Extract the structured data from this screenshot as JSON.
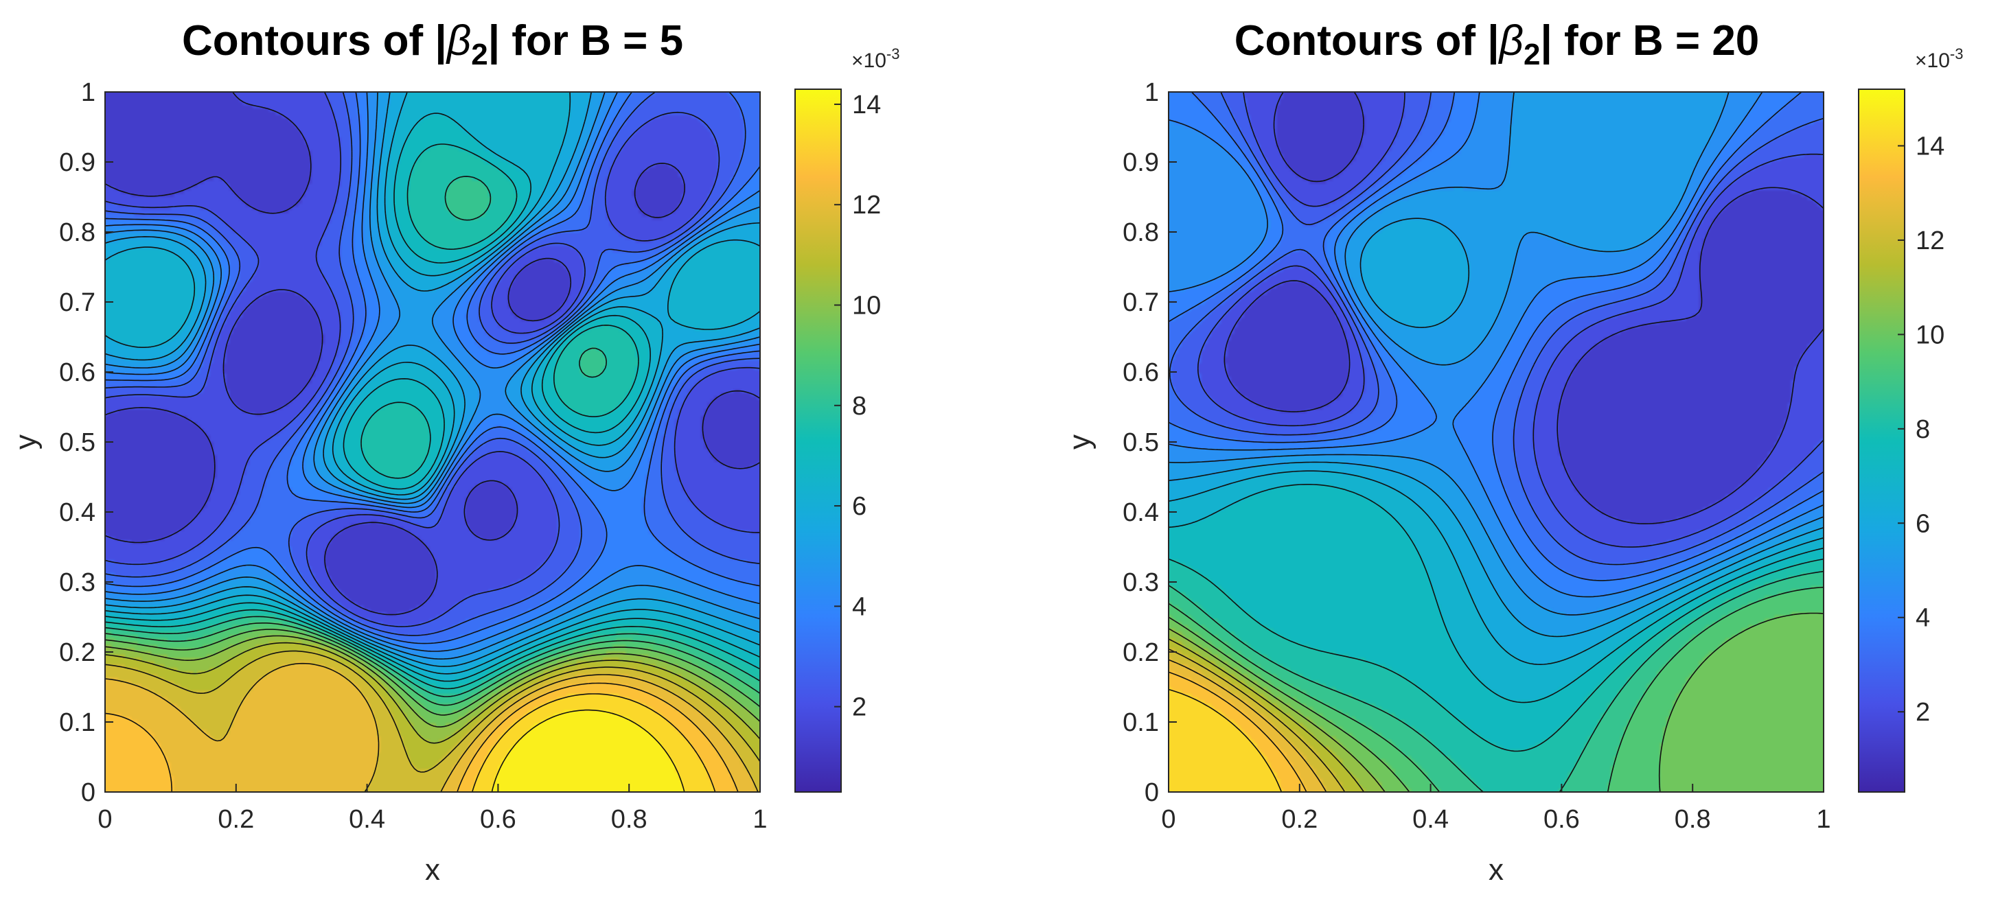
{
  "chart_data": [
    {
      "type": "heatmap",
      "subtype": "filled-contour",
      "title": {
        "prefix": "Contours of |",
        "symbol": "β",
        "subscript": "2",
        "suffix": "| for B = 5"
      },
      "xlabel": "x",
      "ylabel": "y",
      "xlim": [
        0,
        1
      ],
      "ylim": [
        0,
        1
      ],
      "x_ticks": [
        "0",
        "0.2",
        "0.4",
        "0.6",
        "0.8",
        "1"
      ],
      "y_ticks": [
        "0",
        "0.1",
        "0.2",
        "0.3",
        "0.4",
        "0.5",
        "0.6",
        "0.7",
        "0.8",
        "0.9",
        "1"
      ],
      "colorbar": {
        "colormap": "parula",
        "range": [
          0.3,
          14.3
        ],
        "ticks": [
          "2",
          "4",
          "6",
          "8",
          "10",
          "12",
          "14"
        ],
        "tick_values": [
          2,
          4,
          6,
          8,
          10,
          12,
          14
        ],
        "exponent_label": "×10",
        "exponent_power": "-3"
      },
      "features": [
        {
          "x": 0.72,
          "y": 0.0,
          "value": 14.2,
          "kind": "max"
        },
        {
          "x": 0.32,
          "y": 0.11,
          "value": 12.2,
          "kind": "max"
        },
        {
          "x": 0.0,
          "y": 0.02,
          "value": 12.5,
          "kind": "max"
        },
        {
          "x": 0.45,
          "y": 0.49,
          "value": 7.6,
          "kind": "max"
        },
        {
          "x": 0.56,
          "y": 0.85,
          "value": 8.0,
          "kind": "max"
        },
        {
          "x": 0.74,
          "y": 0.62,
          "value": 8.0,
          "kind": "max"
        },
        {
          "x": 0.07,
          "y": 0.71,
          "value": 6.5,
          "kind": "max"
        },
        {
          "x": 0.93,
          "y": 0.73,
          "value": 6.5,
          "kind": "max"
        },
        {
          "x": 0.62,
          "y": 0.955,
          "value": 6.3,
          "kind": "max"
        },
        {
          "x": 0.42,
          "y": 0.33,
          "value": 1.0,
          "kind": "min"
        },
        {
          "x": 0.06,
          "y": 0.47,
          "value": 1.2,
          "kind": "min"
        },
        {
          "x": 0.25,
          "y": 0.63,
          "value": 1.2,
          "kind": "min"
        },
        {
          "x": 0.58,
          "y": 0.41,
          "value": 1.5,
          "kind": "min"
        },
        {
          "x": 0.67,
          "y": 0.71,
          "value": 1.2,
          "kind": "min"
        },
        {
          "x": 0.96,
          "y": 0.53,
          "value": 1.5,
          "kind": "min"
        },
        {
          "x": 0.25,
          "y": 0.89,
          "value": 1.5,
          "kind": "min"
        },
        {
          "x": 0.07,
          "y": 0.92,
          "value": 1.2,
          "kind": "min"
        },
        {
          "x": 0.85,
          "y": 0.85,
          "value": 1.5,
          "kind": "min"
        }
      ]
    },
    {
      "type": "heatmap",
      "subtype": "filled-contour",
      "title": {
        "prefix": "Contours of |",
        "symbol": "β",
        "subscript": "2",
        "suffix": "| for B = 20"
      },
      "xlabel": "x",
      "ylabel": "y",
      "xlim": [
        0,
        1
      ],
      "ylim": [
        0,
        1
      ],
      "x_ticks": [
        "0",
        "0.2",
        "0.4",
        "0.6",
        "0.8",
        "1"
      ],
      "y_ticks": [
        "0",
        "0.1",
        "0.2",
        "0.3",
        "0.4",
        "0.5",
        "0.6",
        "0.7",
        "0.8",
        "0.9",
        "1"
      ],
      "colorbar": {
        "colormap": "parula",
        "range": [
          0.3,
          15.2
        ],
        "ticks": [
          "2",
          "4",
          "6",
          "8",
          "10",
          "12",
          "14"
        ],
        "tick_values": [
          2,
          4,
          6,
          8,
          10,
          12,
          14
        ],
        "exponent_label": "×10",
        "exponent_power": "-3"
      },
      "features": [
        {
          "x": 0.0,
          "y": 0.0,
          "value": 14.5,
          "kind": "max"
        },
        {
          "x": 0.95,
          "y": 0.1,
          "value": 10.2,
          "kind": "max"
        },
        {
          "x": 0.21,
          "y": 0.33,
          "value": 7.6,
          "kind": "max"
        },
        {
          "x": 0.35,
          "y": 0.74,
          "value": 6.0,
          "kind": "max"
        },
        {
          "x": 0.72,
          "y": 0.955,
          "value": 5.6,
          "kind": "max"
        },
        {
          "x": 0.72,
          "y": 0.87,
          "value": 5.5,
          "kind": "max"
        },
        {
          "x": 0.07,
          "y": 0.83,
          "value": 5.0,
          "kind": "max"
        },
        {
          "x": 0.75,
          "y": 0.55,
          "value": 1.0,
          "kind": "min"
        },
        {
          "x": 0.2,
          "y": 0.65,
          "value": 1.0,
          "kind": "min"
        },
        {
          "x": 0.88,
          "y": 0.78,
          "value": 1.3,
          "kind": "min"
        },
        {
          "x": 0.22,
          "y": 0.93,
          "value": 1.5,
          "kind": "min"
        }
      ]
    }
  ]
}
